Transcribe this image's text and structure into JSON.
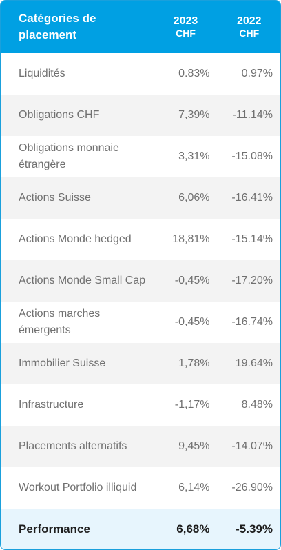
{
  "table": {
    "header": {
      "category": "Catégories de placement",
      "col2023_year": "2023",
      "col2023_unit": "CHF",
      "col2022_year": "2022",
      "col2022_unit": "CHF"
    },
    "rows": [
      {
        "category": "Liquidités",
        "y2023": "0.83%",
        "y2022": "0.97%"
      },
      {
        "category": "Obligations CHF",
        "y2023": "7,39%",
        "y2022": "-11.14%"
      },
      {
        "category": "Obligations monnaie étrangère",
        "y2023": "3,31%",
        "y2022": "-15.08%"
      },
      {
        "category": "Actions Suisse",
        "y2023": "6,06%",
        "y2022": "-16.41%"
      },
      {
        "category": "Actions Monde hedged",
        "y2023": "18,81%",
        "y2022": "-15.14%"
      },
      {
        "category": "Actions Monde Small Cap",
        "y2023": "-0,45%",
        "y2022": "-17.20%"
      },
      {
        "category": "Actions marches émergents",
        "y2023": "-0,45%",
        "y2022": "-16.74%"
      },
      {
        "category": "Immobilier Suisse",
        "y2023": "1,78%",
        "y2022": "19.64%"
      },
      {
        "category": "Infrastructure",
        "y2023": "-1,17%",
        "y2022": "8.48%"
      },
      {
        "category": "Placements alternatifs",
        "y2023": "9,45%",
        "y2022": "-14.07%"
      },
      {
        "category": "Workout Portfolio illiquid",
        "y2023": "6,14%",
        "y2022": "-26.90%"
      }
    ],
    "total": {
      "category": "Performance",
      "y2023": "6,68%",
      "y2022": "-5.39%"
    },
    "colors": {
      "header_bg": "#00a0e3",
      "total_bg": "#e7f5fd",
      "stripe_bg": "#f3f3f3"
    }
  }
}
